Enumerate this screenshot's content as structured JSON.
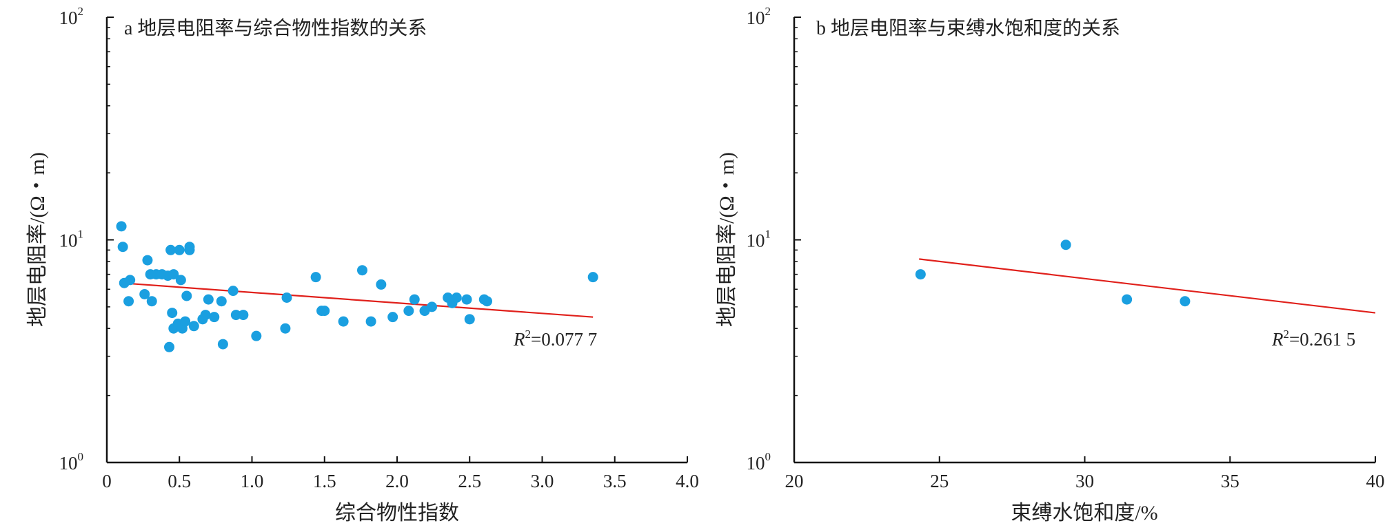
{
  "chart_data": [
    {
      "type": "scatter",
      "title": "a 地层电阻率与综合物性指数的关系",
      "xlabel": "综合物性指数",
      "ylabel": "地层电阻率/(Ω・m)",
      "xlim": [
        0,
        4.0
      ],
      "ylim": [
        1,
        100
      ],
      "yscale": "log",
      "x_ticks": [
        "0",
        "0.5",
        "1.0",
        "1.5",
        "2.0",
        "2.5",
        "3.0",
        "3.5",
        "4.0"
      ],
      "y_ticks": [
        {
          "base": "10",
          "exp": "0"
        },
        {
          "base": "10",
          "exp": "1"
        },
        {
          "base": "10",
          "exp": "2"
        }
      ],
      "point_color": "#1a9fe0",
      "trend_color": "#e0201b",
      "trend": {
        "x": [
          0.1,
          3.35
        ],
        "y": [
          6.4,
          4.5
        ]
      },
      "r2_label": {
        "prefix": "R",
        "sup": "2",
        "value": "=0.077 7"
      },
      "points": [
        {
          "x": 0.1,
          "y": 11.5
        },
        {
          "x": 0.11,
          "y": 9.3
        },
        {
          "x": 0.12,
          "y": 6.4
        },
        {
          "x": 0.15,
          "y": 5.3
        },
        {
          "x": 0.16,
          "y": 6.6
        },
        {
          "x": 0.26,
          "y": 5.7
        },
        {
          "x": 0.28,
          "y": 8.1
        },
        {
          "x": 0.3,
          "y": 7.0
        },
        {
          "x": 0.31,
          "y": 5.3
        },
        {
          "x": 0.34,
          "y": 7.0
        },
        {
          "x": 0.38,
          "y": 7.0
        },
        {
          "x": 0.42,
          "y": 6.9
        },
        {
          "x": 0.43,
          "y": 3.3
        },
        {
          "x": 0.44,
          "y": 9.0
        },
        {
          "x": 0.45,
          "y": 4.7
        },
        {
          "x": 0.46,
          "y": 4.0
        },
        {
          "x": 0.46,
          "y": 7.0
        },
        {
          "x": 0.49,
          "y": 4.2
        },
        {
          "x": 0.5,
          "y": 9.0
        },
        {
          "x": 0.51,
          "y": 6.6
        },
        {
          "x": 0.52,
          "y": 4.0
        },
        {
          "x": 0.54,
          "y": 4.3
        },
        {
          "x": 0.55,
          "y": 5.6
        },
        {
          "x": 0.57,
          "y": 9.0
        },
        {
          "x": 0.57,
          "y": 9.3
        },
        {
          "x": 0.6,
          "y": 4.1
        },
        {
          "x": 0.66,
          "y": 4.4
        },
        {
          "x": 0.68,
          "y": 4.6
        },
        {
          "x": 0.7,
          "y": 5.4
        },
        {
          "x": 0.74,
          "y": 4.5
        },
        {
          "x": 0.79,
          "y": 5.3
        },
        {
          "x": 0.8,
          "y": 3.4
        },
        {
          "x": 0.87,
          "y": 5.9
        },
        {
          "x": 0.89,
          "y": 4.6
        },
        {
          "x": 0.94,
          "y": 4.6
        },
        {
          "x": 1.03,
          "y": 3.7
        },
        {
          "x": 1.23,
          "y": 4.0
        },
        {
          "x": 1.24,
          "y": 5.5
        },
        {
          "x": 1.44,
          "y": 6.8
        },
        {
          "x": 1.48,
          "y": 4.8
        },
        {
          "x": 1.5,
          "y": 4.8
        },
        {
          "x": 1.63,
          "y": 4.3
        },
        {
          "x": 1.76,
          "y": 7.3
        },
        {
          "x": 1.82,
          "y": 4.3
        },
        {
          "x": 1.89,
          "y": 6.3
        },
        {
          "x": 1.97,
          "y": 4.5
        },
        {
          "x": 2.08,
          "y": 4.8
        },
        {
          "x": 2.12,
          "y": 5.4
        },
        {
          "x": 2.19,
          "y": 4.8
        },
        {
          "x": 2.24,
          "y": 5.0
        },
        {
          "x": 2.35,
          "y": 5.5
        },
        {
          "x": 2.38,
          "y": 5.2
        },
        {
          "x": 2.41,
          "y": 5.5
        },
        {
          "x": 2.48,
          "y": 5.4
        },
        {
          "x": 2.5,
          "y": 4.4
        },
        {
          "x": 2.6,
          "y": 5.4
        },
        {
          "x": 2.62,
          "y": 5.3
        },
        {
          "x": 3.35,
          "y": 6.8
        }
      ]
    },
    {
      "type": "scatter",
      "title": "b 地层电阻率与束缚水饱和度的关系",
      "xlabel": "束缚水饱和度/%",
      "ylabel": "地层电阻率/(Ω・m)",
      "xlim": [
        20,
        40
      ],
      "ylim": [
        1,
        100
      ],
      "yscale": "log",
      "x_ticks": [
        "20",
        "25",
        "30",
        "35",
        "40"
      ],
      "y_ticks": [
        {
          "base": "10",
          "exp": "0"
        },
        {
          "base": "10",
          "exp": "1"
        },
        {
          "base": "10",
          "exp": "2"
        }
      ],
      "point_color": "#1a9fe0",
      "trend_color": "#e0201b",
      "trend": {
        "x": [
          24.3,
          40
        ],
        "y": [
          8.2,
          4.7
        ]
      },
      "r2_label": {
        "prefix": "R",
        "sup": "2",
        "value": "=0.261 5"
      },
      "points": [
        {
          "x": 24.35,
          "y": 7.0
        },
        {
          "x": 29.35,
          "y": 9.5
        },
        {
          "x": 31.45,
          "y": 5.4
        },
        {
          "x": 33.45,
          "y": 5.3
        }
      ]
    }
  ]
}
